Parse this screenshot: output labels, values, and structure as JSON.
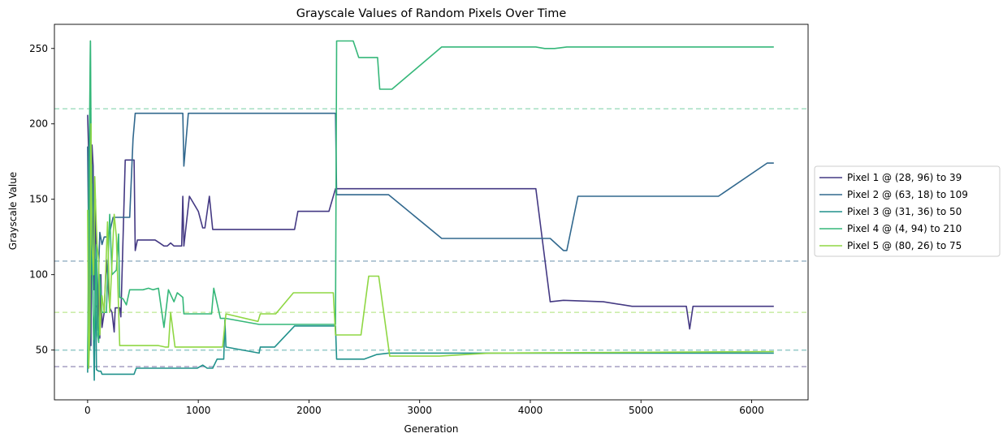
{
  "chart_data": {
    "type": "line",
    "title": "Grayscale Values of Random Pixels Over Time",
    "xlabel": "Generation",
    "ylabel": "Grayscale Value",
    "xlim": [
      -300,
      6510
    ],
    "ylim": [
      17,
      266
    ],
    "xticks": [
      0,
      1000,
      2000,
      3000,
      4000,
      5000,
      6000
    ],
    "yticks": [
      50,
      100,
      150,
      200,
      250
    ],
    "grid": false,
    "legend_position": "outside-right",
    "series": [
      {
        "name": "Pixel 1 @ (28, 96) to 39",
        "color": "#443983",
        "target": 39,
        "points": [
          [
            0,
            206
          ],
          [
            10,
            180
          ],
          [
            20,
            130
          ],
          [
            25,
            60
          ],
          [
            30,
            53
          ],
          [
            40,
            186
          ],
          [
            50,
            172
          ],
          [
            55,
            120
          ],
          [
            60,
            90
          ],
          [
            70,
            150
          ],
          [
            80,
            110
          ],
          [
            90,
            63
          ],
          [
            100,
            90
          ],
          [
            110,
            58
          ],
          [
            120,
            100
          ],
          [
            130,
            65
          ],
          [
            150,
            75
          ],
          [
            170,
            110
          ],
          [
            200,
            78
          ],
          [
            220,
            75
          ],
          [
            240,
            62
          ],
          [
            250,
            78
          ],
          [
            290,
            78
          ],
          [
            300,
            72
          ],
          [
            340,
            176
          ],
          [
            420,
            176
          ],
          [
            430,
            116
          ],
          [
            450,
            123
          ],
          [
            610,
            123
          ],
          [
            650,
            121
          ],
          [
            690,
            119
          ],
          [
            720,
            119
          ],
          [
            750,
            121
          ],
          [
            780,
            119
          ],
          [
            850,
            119
          ],
          [
            860,
            152
          ],
          [
            870,
            119
          ],
          [
            920,
            152
          ],
          [
            1000,
            142
          ],
          [
            1040,
            131
          ],
          [
            1060,
            131
          ],
          [
            1100,
            152
          ],
          [
            1130,
            130
          ],
          [
            1870,
            130
          ],
          [
            1900,
            142
          ],
          [
            2180,
            142
          ],
          [
            2240,
            157
          ],
          [
            4050,
            157
          ],
          [
            4180,
            82
          ],
          [
            4300,
            83
          ],
          [
            4660,
            82
          ],
          [
            4920,
            79
          ],
          [
            5410,
            79
          ],
          [
            5440,
            64
          ],
          [
            5470,
            79
          ],
          [
            6200,
            79
          ]
        ]
      },
      {
        "name": "Pixel 2 @ (63, 18) to 109",
        "color": "#31688e",
        "target": 109,
        "points": [
          [
            0,
            185
          ],
          [
            20,
            50
          ],
          [
            40,
            173
          ],
          [
            60,
            130
          ],
          [
            70,
            78
          ],
          [
            90,
            80
          ],
          [
            110,
            128
          ],
          [
            130,
            120
          ],
          [
            150,
            125
          ],
          [
            180,
            125
          ],
          [
            200,
            128
          ],
          [
            230,
            138
          ],
          [
            380,
            138
          ],
          [
            410,
            190
          ],
          [
            430,
            207
          ],
          [
            860,
            207
          ],
          [
            870,
            172
          ],
          [
            910,
            207
          ],
          [
            2240,
            207
          ],
          [
            2250,
            153
          ],
          [
            2720,
            153
          ],
          [
            3200,
            124
          ],
          [
            4180,
            124
          ],
          [
            4300,
            116
          ],
          [
            4330,
            116
          ],
          [
            4430,
            152
          ],
          [
            5700,
            152
          ],
          [
            6140,
            174
          ],
          [
            6200,
            174
          ]
        ]
      },
      {
        "name": "Pixel 3 @ (31, 36) to 50",
        "color": "#21918c",
        "target": 50,
        "points": [
          [
            0,
            35
          ],
          [
            10,
            120
          ],
          [
            15,
            60
          ],
          [
            25,
            255
          ],
          [
            30,
            100
          ],
          [
            40,
            160
          ],
          [
            50,
            75
          ],
          [
            60,
            30
          ],
          [
            70,
            110
          ],
          [
            80,
            37
          ],
          [
            100,
            36
          ],
          [
            120,
            36
          ],
          [
            130,
            34
          ],
          [
            420,
            34
          ],
          [
            440,
            38
          ],
          [
            620,
            38
          ],
          [
            990,
            38
          ],
          [
            1040,
            40
          ],
          [
            1080,
            38
          ],
          [
            1130,
            38
          ],
          [
            1170,
            44
          ],
          [
            1230,
            44
          ],
          [
            1240,
            70
          ],
          [
            1250,
            52
          ],
          [
            1550,
            48
          ],
          [
            1560,
            52
          ],
          [
            1690,
            52
          ],
          [
            1870,
            66
          ],
          [
            2240,
            66
          ],
          [
            2250,
            44
          ],
          [
            2500,
            44
          ],
          [
            2610,
            47
          ],
          [
            2720,
            48
          ],
          [
            3580,
            48
          ],
          [
            6200,
            48
          ]
        ]
      },
      {
        "name": "Pixel 4 @ (4, 94) to 210",
        "color": "#35b779",
        "target": 210,
        "points": [
          [
            0,
            40
          ],
          [
            15,
            180
          ],
          [
            25,
            255
          ],
          [
            35,
            150
          ],
          [
            45,
            100
          ],
          [
            55,
            57
          ],
          [
            70,
            80
          ],
          [
            80,
            120
          ],
          [
            90,
            60
          ],
          [
            100,
            55
          ],
          [
            110,
            100
          ],
          [
            130,
            75
          ],
          [
            170,
            75
          ],
          [
            200,
            140
          ],
          [
            220,
            100
          ],
          [
            260,
            103
          ],
          [
            280,
            127
          ],
          [
            290,
            85
          ],
          [
            320,
            84
          ],
          [
            350,
            80
          ],
          [
            380,
            90
          ],
          [
            500,
            90
          ],
          [
            550,
            91
          ],
          [
            590,
            90
          ],
          [
            640,
            91
          ],
          [
            690,
            65
          ],
          [
            730,
            90
          ],
          [
            780,
            82
          ],
          [
            810,
            88
          ],
          [
            860,
            85
          ],
          [
            870,
            74
          ],
          [
            1120,
            74
          ],
          [
            1140,
            91
          ],
          [
            1200,
            71
          ],
          [
            1250,
            71
          ],
          [
            1550,
            67
          ],
          [
            2240,
            67
          ],
          [
            2250,
            255
          ],
          [
            2400,
            255
          ],
          [
            2450,
            244
          ],
          [
            2620,
            244
          ],
          [
            2640,
            223
          ],
          [
            2750,
            223
          ],
          [
            3200,
            251
          ],
          [
            4050,
            251
          ],
          [
            4130,
            250
          ],
          [
            4220,
            250
          ],
          [
            4330,
            251
          ],
          [
            6200,
            251
          ]
        ]
      },
      {
        "name": "Pixel 5 @ (80, 26) to 75",
        "color": "#8fd744",
        "target": 75,
        "points": [
          [
            0,
            143
          ],
          [
            10,
            38
          ],
          [
            20,
            62
          ],
          [
            30,
            200
          ],
          [
            40,
            120
          ],
          [
            55,
            100
          ],
          [
            65,
            165
          ],
          [
            75,
            140
          ],
          [
            85,
            120
          ],
          [
            100,
            110
          ],
          [
            110,
            60
          ],
          [
            130,
            86
          ],
          [
            150,
            75
          ],
          [
            180,
            135
          ],
          [
            200,
            75
          ],
          [
            240,
            140
          ],
          [
            260,
            125
          ],
          [
            290,
            53
          ],
          [
            520,
            53
          ],
          [
            640,
            53
          ],
          [
            700,
            52
          ],
          [
            730,
            52
          ],
          [
            750,
            75
          ],
          [
            790,
            52
          ],
          [
            1220,
            52
          ],
          [
            1250,
            74
          ],
          [
            1540,
            69
          ],
          [
            1560,
            74
          ],
          [
            1700,
            74
          ],
          [
            1860,
            88
          ],
          [
            2220,
            88
          ],
          [
            2240,
            60
          ],
          [
            2470,
            60
          ],
          [
            2540,
            99
          ],
          [
            2630,
            99
          ],
          [
            2730,
            46
          ],
          [
            3180,
            46
          ],
          [
            3630,
            48
          ],
          [
            6200,
            49
          ]
        ]
      }
    ]
  }
}
